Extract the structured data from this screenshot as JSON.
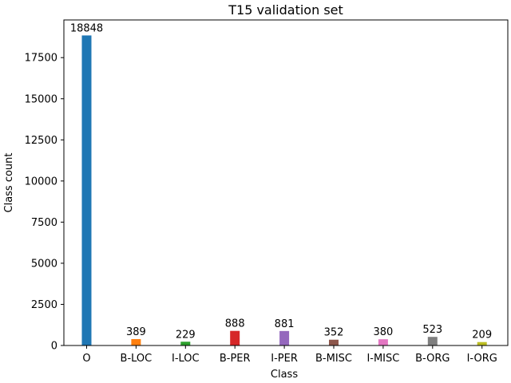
{
  "chart_data": {
    "type": "bar",
    "title": "T15 validation set",
    "xlabel": "Class",
    "ylabel": "Class count",
    "categories": [
      "O",
      "B-LOC",
      "I-LOC",
      "B-PER",
      "I-PER",
      "B-MISC",
      "I-MISC",
      "B-ORG",
      "I-ORG"
    ],
    "values": [
      18848,
      389,
      229,
      888,
      881,
      352,
      380,
      523,
      209
    ],
    "colors": [
      "#1f77b4",
      "#ff7f0e",
      "#2ca02c",
      "#d62728",
      "#9467bd",
      "#8c564b",
      "#e377c2",
      "#7f7f7f",
      "#bcbd22"
    ],
    "ylim": [
      0,
      19790
    ],
    "yticks": [
      0,
      2500,
      5000,
      7500,
      10000,
      12500,
      15000,
      17500
    ],
    "data_labels": true,
    "grid": false,
    "legend": "none"
  }
}
